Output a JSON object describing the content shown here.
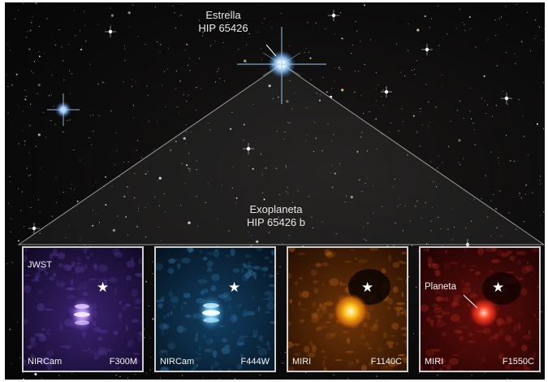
{
  "labels": {
    "star": {
      "line1": "Estrella",
      "line2": "HIP 65426"
    },
    "exoplanet": {
      "line1": "Exoplaneta",
      "line2": "HIP 65426 b"
    },
    "telescope": "JWST",
    "planet_marker": "Planeta"
  },
  "panels": [
    {
      "instrument": "NIRCam",
      "filter": "F300M",
      "palette": "violet"
    },
    {
      "instrument": "NIRCam",
      "filter": "F444W",
      "palette": "blue"
    },
    {
      "instrument": "MIRI",
      "filter": "F1140C",
      "palette": "orange"
    },
    {
      "instrument": "MIRI",
      "filter": "F1550C",
      "palette": "red"
    }
  ],
  "icons": {
    "star_marker": "star-icon"
  },
  "colors": {
    "violet": "#2a1650",
    "blue": "#0e3552",
    "orange": "#5a2a06",
    "red": "#4a0a0a",
    "frame": "#cfcfcf"
  }
}
